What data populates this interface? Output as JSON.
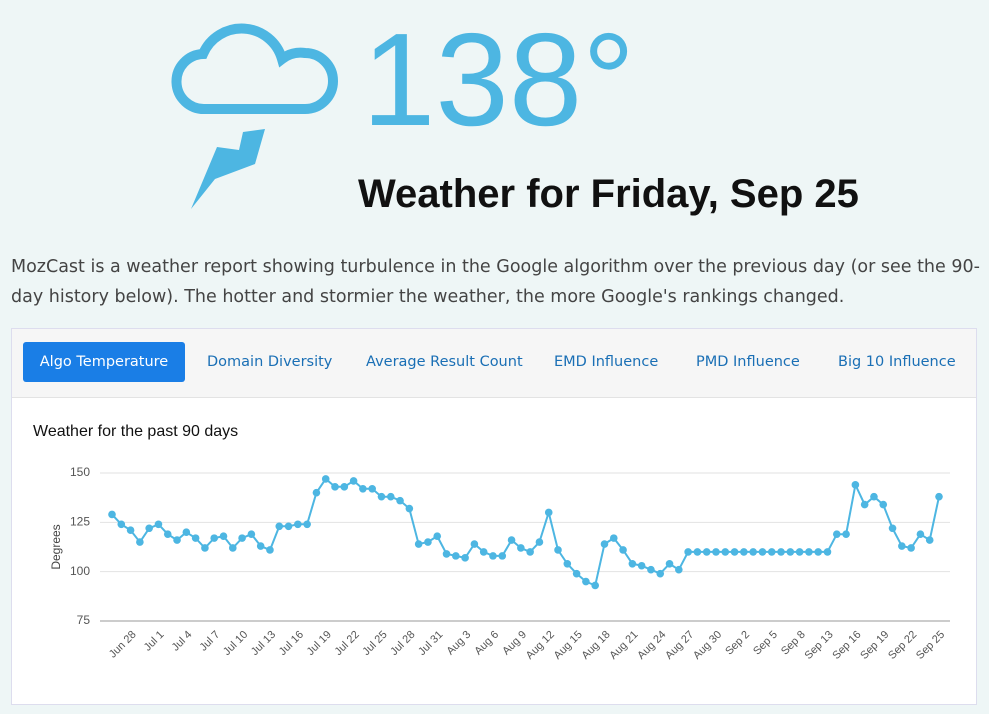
{
  "header": {
    "temperature": "138°",
    "title": "Weather for Friday, Sep 25"
  },
  "description": "MozCast is a weather report showing turbulence in the Google algorithm over the previous day (or see the 90-day history below). The hotter and stormier the weather, the more Google's rankings changed.",
  "tabs": [
    "Algo Temperature",
    "Domain Diversity",
    "Average Result Count",
    "EMD Influence",
    "PMD Influence",
    "Big 10 Influence"
  ],
  "chart_data": {
    "type": "line",
    "title": "Weather for the past 90 days",
    "y_label": "Degrees",
    "categories": [
      null,
      null,
      "Jun 28",
      null,
      null,
      "Jul 1",
      null,
      null,
      "Jul 4",
      null,
      null,
      "Jul 7",
      null,
      null,
      "Jul 10",
      null,
      null,
      "Jul 13",
      null,
      null,
      "Jul 16",
      null,
      null,
      "Jul 19",
      null,
      null,
      "Jul 22",
      null,
      null,
      "Jul 25",
      null,
      null,
      "Jul 28",
      null,
      null,
      "Jul 31",
      null,
      null,
      "Aug 3",
      null,
      null,
      "Aug 6",
      null,
      null,
      "Aug 9",
      null,
      null,
      "Aug 12",
      null,
      null,
      "Aug 15",
      null,
      null,
      "Aug 18",
      null,
      null,
      "Aug 21",
      null,
      null,
      "Aug 24",
      null,
      null,
      "Aug 27",
      null,
      null,
      "Aug 30",
      null,
      null,
      "Sep 2",
      null,
      null,
      "Sep 5",
      null,
      null,
      "Sep 8",
      null,
      null,
      "Sep 13",
      null,
      null,
      "Sep 16",
      null,
      null,
      "Sep 19",
      null,
      null,
      "Sep 22",
      null,
      null,
      "Sep 25"
    ],
    "values": [
      129,
      124,
      121,
      115,
      122,
      124,
      119,
      116,
      120,
      117,
      112,
      117,
      118,
      112,
      117,
      119,
      113,
      111,
      123,
      123,
      124,
      124,
      140,
      147,
      143,
      143,
      146,
      142,
      142,
      138,
      138,
      136,
      132,
      114,
      115,
      118,
      109,
      108,
      107,
      114,
      110,
      108,
      108,
      116,
      112,
      110,
      115,
      130,
      111,
      104,
      99,
      95,
      93,
      114,
      117,
      111,
      104,
      103,
      101,
      99,
      104,
      101,
      110,
      110,
      110,
      110,
      110,
      110,
      110,
      110,
      110,
      110,
      110,
      110,
      110,
      110,
      110,
      110,
      119,
      119,
      144,
      134,
      138,
      134,
      122,
      113,
      112,
      119,
      116,
      138
    ],
    "color": "#4db6e2",
    "ylim": [
      75,
      150
    ],
    "yticks": [
      75,
      100,
      125,
      150
    ],
    "grid": true
  }
}
